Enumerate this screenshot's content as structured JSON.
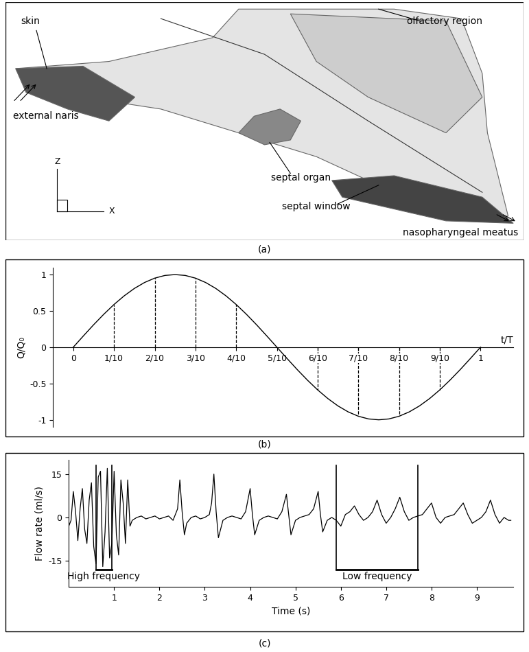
{
  "chart_data": [
    {
      "type": "diagram",
      "caption": "(a)",
      "labels": [
        "skin",
        "external naris",
        "olfactory region",
        "septal organ",
        "septal window",
        "nasopharyngeal meatus"
      ],
      "axis_labels": [
        "Z",
        "X"
      ]
    },
    {
      "type": "line",
      "caption": "(b)",
      "x_label": "t/T",
      "y_label": "Q/Q₀",
      "color": "#000000",
      "x": [
        0,
        0.025,
        0.05,
        0.075,
        0.1,
        0.125,
        0.15,
        0.175,
        0.2,
        0.225,
        0.25,
        0.275,
        0.3,
        0.325,
        0.35,
        0.375,
        0.4,
        0.425,
        0.45,
        0.475,
        0.5,
        0.525,
        0.55,
        0.575,
        0.6,
        0.625,
        0.65,
        0.675,
        0.7,
        0.725,
        0.75,
        0.775,
        0.8,
        0.825,
        0.85,
        0.875,
        0.9,
        0.925,
        0.95,
        0.975,
        1.0
      ],
      "values": [
        0,
        0.156,
        0.309,
        0.454,
        0.588,
        0.707,
        0.809,
        0.891,
        0.951,
        0.988,
        1,
        0.988,
        0.951,
        0.891,
        0.809,
        0.707,
        0.588,
        0.454,
        0.309,
        0.156,
        0,
        -0.156,
        -0.309,
        -0.454,
        -0.588,
        -0.707,
        -0.809,
        -0.891,
        -0.951,
        -0.988,
        -1,
        -0.988,
        -0.951,
        -0.891,
        -0.809,
        -0.707,
        -0.588,
        -0.454,
        -0.309,
        -0.156,
        0
      ],
      "xlim": [
        -0.05,
        1.08
      ],
      "ylim": [
        -1.1,
        1.1
      ],
      "xticks": [
        0,
        {
          "value": 0.1,
          "label": "1/10"
        },
        {
          "value": 0.2,
          "label": "2/10"
        },
        {
          "value": 0.3,
          "label": "3/10"
        },
        {
          "value": 0.4,
          "label": "4/10"
        },
        {
          "value": 0.5,
          "label": "5/10"
        },
        {
          "value": 0.6,
          "label": "6/10"
        },
        {
          "value": 0.7,
          "label": "7/10"
        },
        {
          "value": 0.8,
          "label": "8/10"
        },
        {
          "value": 0.9,
          "label": "9/10"
        },
        1
      ],
      "yticks": [
        -1,
        -0.5,
        0,
        0.5,
        1
      ],
      "reference_lines": [
        0.1,
        0.2,
        0.3,
        0.4,
        0.6,
        0.7,
        0.8,
        0.9
      ]
    },
    {
      "type": "line",
      "caption": "(c)",
      "x_label": "Time (s)",
      "y_label": "Flow rate (ml/s)",
      "color": "#000000",
      "x": [
        0.0,
        0.05,
        0.1,
        0.15,
        0.2,
        0.25,
        0.3,
        0.35,
        0.4,
        0.45,
        0.5,
        0.55,
        0.6,
        0.65,
        0.7,
        0.75,
        0.8,
        0.85,
        0.9,
        0.95,
        1.0,
        1.05,
        1.1,
        1.15,
        1.2,
        1.25,
        1.3,
        1.35,
        1.4,
        1.5,
        1.6,
        1.7,
        1.8,
        1.9,
        2.0,
        2.1,
        2.2,
        2.3,
        2.4,
        2.45,
        2.5,
        2.55,
        2.6,
        2.7,
        2.8,
        2.9,
        3.0,
        3.1,
        3.15,
        3.2,
        3.25,
        3.3,
        3.4,
        3.5,
        3.6,
        3.7,
        3.8,
        3.9,
        3.95,
        4.0,
        4.05,
        4.1,
        4.2,
        4.3,
        4.4,
        4.5,
        4.6,
        4.7,
        4.75,
        4.8,
        4.85,
        4.9,
        5.0,
        5.1,
        5.2,
        5.3,
        5.4,
        5.45,
        5.5,
        5.55,
        5.6,
        5.7,
        5.8,
        5.9,
        6.0,
        6.1,
        6.2,
        6.3,
        6.4,
        6.5,
        6.6,
        6.7,
        6.8,
        6.9,
        7.0,
        7.1,
        7.2,
        7.3,
        7.4,
        7.5,
        7.6,
        7.7,
        7.8,
        7.9,
        8.0,
        8.1,
        8.2,
        8.3,
        8.4,
        8.5,
        8.6,
        8.7,
        8.8,
        8.9,
        9.0,
        9.1,
        9.2,
        9.3,
        9.4,
        9.5,
        9.6,
        9.7,
        9.75
      ],
      "values": [
        -3,
        -1,
        9,
        2,
        -8,
        3,
        10,
        -4,
        -9,
        6,
        12,
        -10,
        -16,
        14,
        16,
        -17,
        -5,
        17,
        -14,
        -9,
        16,
        -6,
        -13,
        13,
        5,
        -9,
        13,
        -3,
        -1,
        0,
        0.5,
        -0.5,
        0,
        0.5,
        -0.5,
        0,
        0.5,
        -1,
        3,
        13,
        2,
        -6,
        -2,
        0,
        0.5,
        -0.5,
        0,
        1,
        5,
        15,
        2,
        -7,
        -1,
        0,
        0.5,
        0,
        -0.5,
        2,
        6,
        10,
        1,
        -6,
        -1,
        0,
        0.5,
        0,
        -0.5,
        2,
        5,
        8,
        1,
        -6,
        -1,
        0,
        0.5,
        1,
        3,
        6,
        9,
        1,
        -5,
        -1,
        0,
        -1,
        -3,
        1,
        2,
        4,
        1,
        -1,
        0,
        2,
        6,
        1,
        -2,
        0,
        3,
        7,
        2,
        -1,
        0,
        0.5,
        1,
        3,
        5,
        0,
        -2,
        0,
        0.5,
        1,
        3,
        5,
        1,
        -2,
        -1,
        0,
        2,
        6,
        1,
        -2,
        0,
        -1,
        -1
      ],
      "xlim": [
        0,
        9.8
      ],
      "ylim": [
        -24,
        20
      ],
      "xticks": [
        1,
        2,
        3,
        4,
        5,
        6,
        7,
        8,
        9
      ],
      "yticks": [
        -15,
        0,
        15
      ],
      "annotations": [
        {
          "text": "High frequency",
          "x": [
            0.6,
            0.95
          ],
          "y": [
            -18,
            18
          ]
        },
        {
          "text": "Low frequency",
          "x": [
            5.9,
            7.7
          ],
          "y": [
            -18,
            18
          ]
        }
      ]
    }
  ]
}
